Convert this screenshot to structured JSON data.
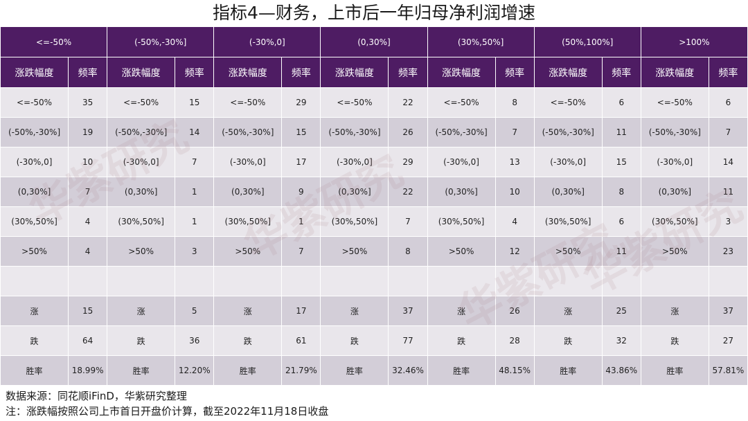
{
  "title": "指标4—财务，上市后一年归母净利润增速",
  "headers": [
    "<=-50%",
    "(-50%,-30%]",
    "(-30%,0]",
    "(0,30%]",
    "(30%,50%]",
    "(50%,100%]",
    ">100%"
  ],
  "sub_headers": {
    "range": "涨跌幅度",
    "freq": "频率"
  },
  "ranges": [
    "<=-50%",
    "(-50%,-30%]",
    "(-30%,0]",
    "(0,30%]",
    "(30%,50%]",
    ">50%"
  ],
  "frequencies": [
    [
      "35",
      "15",
      "29",
      "22",
      "8",
      "6",
      "6"
    ],
    [
      "19",
      "14",
      "15",
      "26",
      "7",
      "11",
      "7"
    ],
    [
      "10",
      "7",
      "17",
      "29",
      "13",
      "15",
      "14"
    ],
    [
      "7",
      "1",
      "9",
      "22",
      "10",
      "8",
      "11"
    ],
    [
      "4",
      "1",
      "1",
      "7",
      "4",
      "6",
      "3"
    ],
    [
      "4",
      "3",
      "7",
      "8",
      "12",
      "11",
      "23"
    ]
  ],
  "summary_labels": {
    "up": "涨",
    "down": "跌",
    "win": "胜率"
  },
  "up": [
    "15",
    "5",
    "17",
    "37",
    "26",
    "25",
    "37"
  ],
  "down": [
    "64",
    "36",
    "61",
    "77",
    "28",
    "32",
    "27"
  ],
  "win_rate": [
    "18.99%",
    "12.20%",
    "21.79%",
    "32.46%",
    "48.15%",
    "43.86%",
    "57.81%"
  ],
  "footer": {
    "source": "数据来源：同花顺iFinD，华紫研究整理",
    "note": "注：涨跌幅按照公司上市首日开盘价计算，截至2022年11月18日收盘"
  },
  "watermark": "华紫研究",
  "colors": {
    "header_bg": "#4e1c63",
    "row_light": "#e9e6eb",
    "row_dark": "#d3ced8"
  }
}
